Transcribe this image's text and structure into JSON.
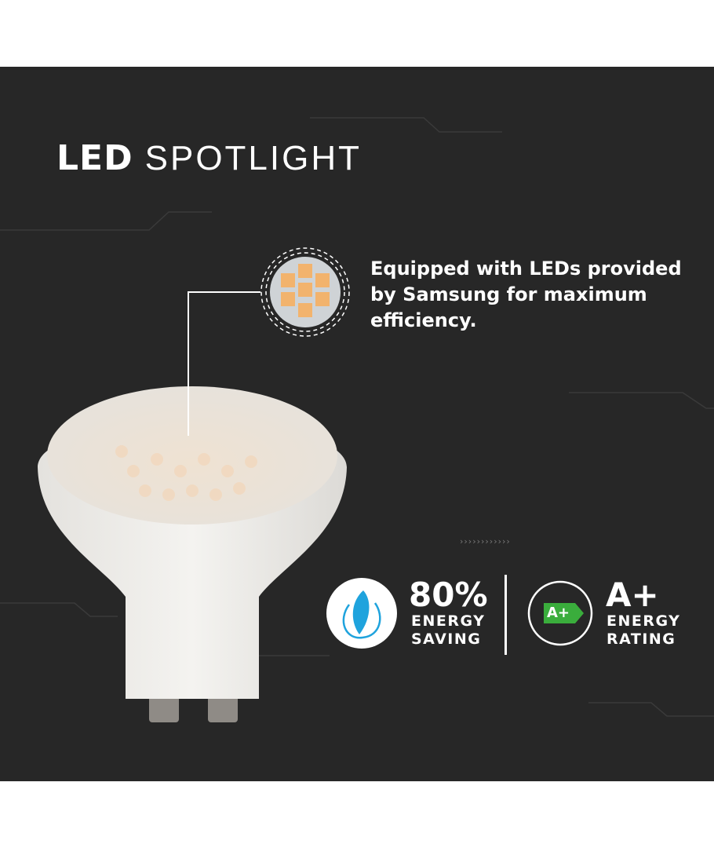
{
  "title": {
    "bold": "LED",
    "light": "SPOTLIGHT"
  },
  "feature": {
    "text": "Equipped with LEDs provided by Samsung for maximum efficiency.",
    "icon": "led-chip-icon"
  },
  "stats": [
    {
      "value": "80%",
      "label_line1": "ENERGY",
      "label_line2": "SAVING",
      "icon": "eco-leaf-plug-icon",
      "icon_color": "#1fa3dd"
    },
    {
      "value": "A+",
      "label_line1": "ENERGY",
      "label_line2": "RATING",
      "icon": "energy-class-icon",
      "badge": "A+",
      "badge_color": "#3aad3c"
    }
  ],
  "colors": {
    "background": "#272727",
    "text": "#ffffff"
  },
  "decor": {
    "arrows": "››››››››››››"
  }
}
